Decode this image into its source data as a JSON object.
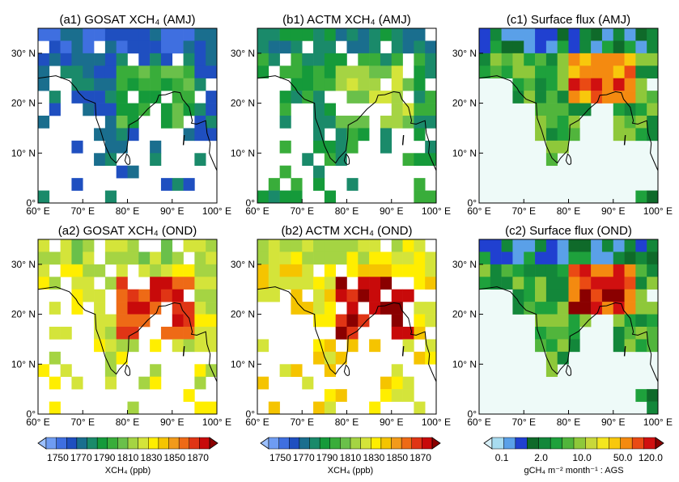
{
  "panels": [
    {
      "title": "(a1) GOSAT XCH₄ (AMJ)",
      "kind": "xch4",
      "seed": 11,
      "offset": -3
    },
    {
      "title": "(b1) ACTM XCH₄ (AMJ)",
      "kind": "xch4",
      "seed": 23,
      "offset": -1
    },
    {
      "title": "(c1) Surface flux (AMJ)",
      "kind": "flux",
      "seed": 37,
      "offset": 0
    },
    {
      "title": "(a2) GOSAT XCH₄ (OND)",
      "kind": "xch4",
      "seed": 41,
      "offset": 3
    },
    {
      "title": "(b2) ACTM XCH₄ (OND)",
      "kind": "xch4",
      "seed": 53,
      "offset": 4
    },
    {
      "title": "(c2) Surface flux (OND)",
      "kind": "flux",
      "seed": 67,
      "offset": 1
    }
  ],
  "lon_ticks": [
    "60° E",
    "70° E",
    "80° E",
    "90° E",
    "100° E"
  ],
  "lat_ticks": [
    "0°",
    "10° N",
    "20° N",
    "30° N"
  ],
  "colorbars": [
    {
      "ticks": [
        "1750",
        "1770",
        "1790",
        "1810",
        "1830",
        "1850",
        "1870"
      ],
      "label": "XCH₄ (ppb)"
    },
    {
      "ticks": [
        "1750",
        "1770",
        "1790",
        "1810",
        "1830",
        "1850",
        "1870"
      ],
      "label": "XCH₄ (ppb)"
    },
    {
      "ticks": [
        "0.1",
        "2.0",
        "10.0",
        "50.0",
        "120.0"
      ],
      "label": "gCH₄ m⁻² month⁻¹ : AGS"
    }
  ],
  "colors": {
    "xch4": [
      "#9cc0ff",
      "#6f9cf2",
      "#3f6fe0",
      "#1f4fc0",
      "#1a6e8e",
      "#1a8a6a",
      "#159a3a",
      "#39ad3a",
      "#6ac04a",
      "#a5d443",
      "#d4e43a",
      "#ffee00",
      "#f5c400",
      "#f29a1a",
      "#ee6a16",
      "#e03515",
      "#c80a0a",
      "#8a0000"
    ],
    "flux": [
      "#d8f0f8",
      "#a8dcf0",
      "#5aa0e8",
      "#2040d0",
      "#0f6a2a",
      "#13873a",
      "#1ea13c",
      "#51b53c",
      "#8ec83a",
      "#c8d83a",
      "#f4e61e",
      "#f8c80c",
      "#f48a10",
      "#ea4a14",
      "#d01010",
      "#8a0000"
    ],
    "ocean": "#eefaf8"
  }
}
